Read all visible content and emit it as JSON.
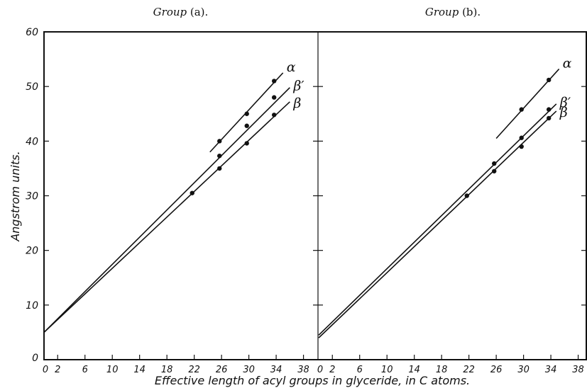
{
  "chart_data": [
    {
      "type": "line",
      "title": "Group (a).",
      "title_parts": {
        "italic": "Group",
        "plain": "(a)."
      },
      "ylabel": "Angstrom units.",
      "xlabel": "Effective length of acyl groups in glyceride, in C atoms.",
      "xlim": [
        0,
        40
      ],
      "ylim": [
        0,
        60
      ],
      "x_ticks": [
        0,
        2,
        6,
        10,
        14,
        18,
        22,
        26,
        30,
        34,
        38
      ],
      "y_ticks": [
        0,
        10,
        20,
        30,
        40,
        50,
        60
      ],
      "grid": false,
      "series": [
        {
          "name": "α",
          "line": {
            "x": [
              24.3,
              35.0
            ],
            "y": [
              38.0,
              52.5
            ]
          },
          "x": [
            25.7,
            29.7,
            33.7
          ],
          "y": [
            40.0,
            45.0,
            51.0
          ]
        },
        {
          "name": "β′",
          "line": {
            "x": [
              0,
              36.0
            ],
            "y": [
              5.0,
              49.8
            ]
          },
          "x": [
            21.7,
            25.7,
            29.7,
            33.7
          ],
          "y": [
            30.5,
            37.3,
            42.8,
            48.0
          ]
        },
        {
          "name": "β",
          "line": {
            "x": [
              0,
              36.0
            ],
            "y": [
              5.0,
              47.2
            ]
          },
          "x": [
            25.7,
            29.7,
            33.7
          ],
          "y": [
            35.0,
            39.6,
            44.8
          ]
        }
      ]
    },
    {
      "type": "line",
      "title": "Group (b).",
      "title_parts": {
        "italic": "Group",
        "plain": "(b)."
      },
      "xlim": [
        0,
        40
      ],
      "ylim": [
        0,
        60
      ],
      "x_ticks": [
        0,
        2,
        6,
        10,
        14,
        18,
        22,
        26,
        30,
        34,
        38
      ],
      "y_ticks": [
        0,
        10,
        20,
        30,
        40,
        50,
        60
      ],
      "grid": false,
      "series": [
        {
          "name": "α",
          "line": {
            "x": [
              26.0,
              35.2
            ],
            "y": [
              40.5,
              53.2
            ]
          },
          "x": [
            29.7,
            33.7
          ],
          "y": [
            45.8,
            51.2
          ]
        },
        {
          "name": "β′",
          "line": {
            "x": [
              0,
              34.8
            ],
            "y": [
              4.5,
              46.8
            ]
          },
          "x": [
            21.7,
            25.7,
            29.7,
            33.7
          ],
          "y": [
            30.0,
            35.9,
            40.6,
            45.8
          ]
        },
        {
          "name": "β",
          "line": {
            "x": [
              0,
              34.8
            ],
            "y": [
              4.0,
              45.5
            ]
          },
          "x": [
            25.7,
            29.7,
            33.7
          ],
          "y": [
            34.5,
            39.0,
            44.2
          ]
        }
      ]
    }
  ]
}
